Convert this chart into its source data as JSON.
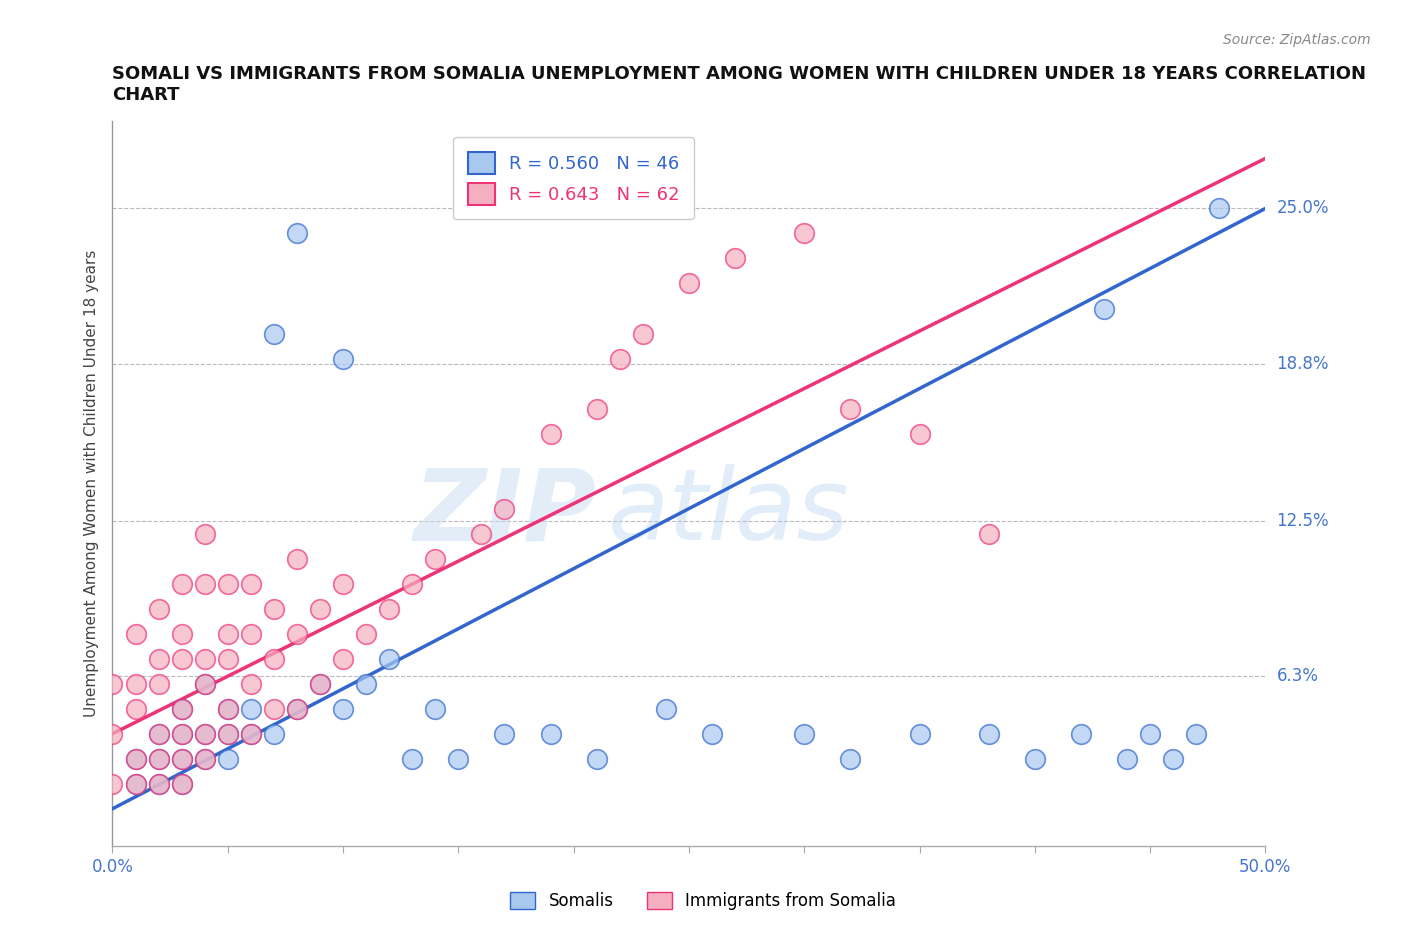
{
  "title": "SOMALI VS IMMIGRANTS FROM SOMALIA UNEMPLOYMENT AMONG WOMEN WITH CHILDREN UNDER 18 YEARS CORRELATION\nCHART",
  "source": "Source: ZipAtlas.com",
  "ylabel": "Unemployment Among Women with Children Under 18 years",
  "xlim": [
    0,
    0.5
  ],
  "ylim": [
    -0.005,
    0.285
  ],
  "xticks": [
    0.0,
    0.05,
    0.1,
    0.15,
    0.2,
    0.25,
    0.3,
    0.35,
    0.4,
    0.45,
    0.5
  ],
  "xticklabels": [
    "0.0%",
    "",
    "",
    "",
    "",
    "",
    "",
    "",
    "",
    "",
    "50.0%"
  ],
  "ytick_positions": [
    0.063,
    0.125,
    0.188,
    0.25
  ],
  "ytick_labels": [
    "6.3%",
    "12.5%",
    "18.8%",
    "25.0%"
  ],
  "legend_label1": "R = 0.560   N = 46",
  "legend_label2": "R = 0.643   N = 62",
  "color_somali": "#a8c8f0",
  "color_immigrant": "#f4b0c0",
  "line_color_somali": "#3366cc",
  "line_color_immigrant": "#ee3377",
  "watermark": "ZIPatlas",
  "somali_x": [
    0.01,
    0.01,
    0.02,
    0.02,
    0.02,
    0.03,
    0.03,
    0.03,
    0.03,
    0.04,
    0.04,
    0.04,
    0.05,
    0.05,
    0.05,
    0.06,
    0.06,
    0.07,
    0.07,
    0.08,
    0.08,
    0.09,
    0.1,
    0.1,
    0.11,
    0.12,
    0.13,
    0.14,
    0.15,
    0.17,
    0.19,
    0.21,
    0.24,
    0.26,
    0.3,
    0.32,
    0.35,
    0.38,
    0.4,
    0.42,
    0.43,
    0.44,
    0.45,
    0.46,
    0.47,
    0.48
  ],
  "somali_y": [
    0.02,
    0.03,
    0.02,
    0.03,
    0.04,
    0.02,
    0.03,
    0.04,
    0.05,
    0.03,
    0.04,
    0.06,
    0.03,
    0.04,
    0.05,
    0.04,
    0.05,
    0.04,
    0.2,
    0.05,
    0.24,
    0.06,
    0.05,
    0.19,
    0.06,
    0.07,
    0.03,
    0.05,
    0.03,
    0.04,
    0.04,
    0.03,
    0.05,
    0.04,
    0.04,
    0.03,
    0.04,
    0.04,
    0.03,
    0.04,
    0.21,
    0.03,
    0.04,
    0.03,
    0.04,
    0.25
  ],
  "immigrant_x": [
    0.0,
    0.0,
    0.0,
    0.01,
    0.01,
    0.01,
    0.01,
    0.01,
    0.02,
    0.02,
    0.02,
    0.02,
    0.02,
    0.02,
    0.03,
    0.03,
    0.03,
    0.03,
    0.03,
    0.03,
    0.03,
    0.04,
    0.04,
    0.04,
    0.04,
    0.04,
    0.04,
    0.05,
    0.05,
    0.05,
    0.05,
    0.05,
    0.06,
    0.06,
    0.06,
    0.06,
    0.07,
    0.07,
    0.07,
    0.08,
    0.08,
    0.08,
    0.09,
    0.09,
    0.1,
    0.1,
    0.11,
    0.12,
    0.13,
    0.14,
    0.16,
    0.17,
    0.19,
    0.21,
    0.22,
    0.23,
    0.25,
    0.27,
    0.3,
    0.32,
    0.35,
    0.38
  ],
  "immigrant_y": [
    0.02,
    0.04,
    0.06,
    0.02,
    0.03,
    0.05,
    0.06,
    0.08,
    0.02,
    0.03,
    0.04,
    0.06,
    0.07,
    0.09,
    0.02,
    0.03,
    0.04,
    0.05,
    0.07,
    0.08,
    0.1,
    0.03,
    0.04,
    0.06,
    0.07,
    0.1,
    0.12,
    0.04,
    0.05,
    0.07,
    0.08,
    0.1,
    0.04,
    0.06,
    0.08,
    0.1,
    0.05,
    0.07,
    0.09,
    0.05,
    0.08,
    0.11,
    0.06,
    0.09,
    0.07,
    0.1,
    0.08,
    0.09,
    0.1,
    0.11,
    0.12,
    0.13,
    0.16,
    0.17,
    0.19,
    0.2,
    0.22,
    0.23,
    0.24,
    0.17,
    0.16,
    0.12
  ]
}
